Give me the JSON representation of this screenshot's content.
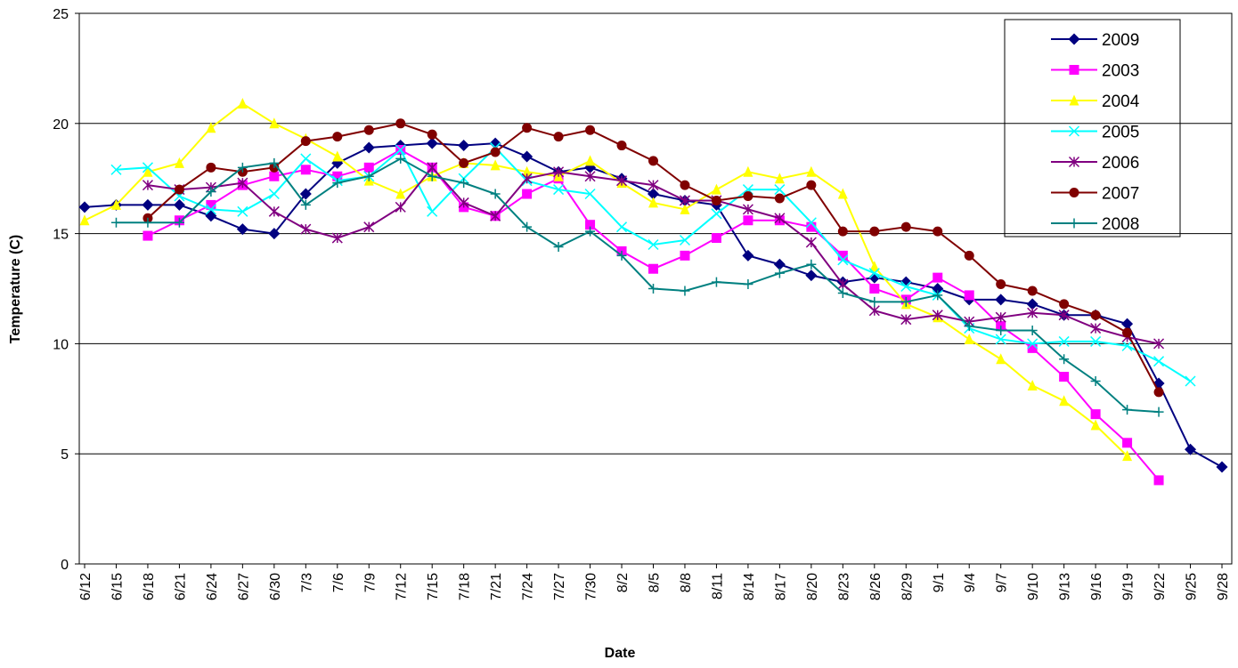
{
  "chart_data": {
    "type": "line",
    "x_label": "Date",
    "y_label": "Temperature (C)",
    "categories": [
      "6/12",
      "6/15",
      "6/18",
      "6/21",
      "6/24",
      "6/27",
      "6/30",
      "7/3",
      "7/6",
      "7/9",
      "7/12",
      "7/15",
      "7/18",
      "7/21",
      "7/24",
      "7/27",
      "7/30",
      "8/2",
      "8/5",
      "8/8",
      "8/11",
      "8/14",
      "8/17",
      "8/20",
      "8/23",
      "8/26",
      "8/29",
      "9/1",
      "9/4",
      "9/7",
      "9/10",
      "9/13",
      "9/16",
      "9/19",
      "9/22",
      "9/25",
      "9/28"
    ],
    "ylim": [
      0,
      25
    ],
    "yticks": [
      0,
      5,
      10,
      15,
      20,
      25
    ],
    "grid": true,
    "legend": "upper right",
    "series": [
      {
        "name": "2009",
        "color": "#000080",
        "marker": "diamond",
        "values": [
          16.2,
          16.3,
          16.3,
          16.3,
          15.8,
          15.2,
          15.0,
          16.8,
          18.2,
          18.9,
          19.0,
          19.1,
          19.0,
          19.1,
          18.5,
          17.8,
          18.0,
          17.5,
          16.8,
          16.5,
          16.3,
          14.0,
          13.6,
          13.1,
          12.8,
          13.0,
          12.8,
          12.5,
          12.0,
          12.0,
          11.8,
          11.3,
          11.3,
          10.9,
          8.2,
          5.2,
          4.4
        ]
      },
      {
        "name": "2003",
        "color": "#ff00ff",
        "marker": "square",
        "values": [
          null,
          null,
          14.9,
          15.6,
          16.3,
          17.2,
          17.6,
          17.9,
          17.6,
          18.0,
          18.8,
          18.0,
          16.2,
          15.8,
          16.8,
          17.5,
          15.4,
          14.2,
          13.4,
          14.0,
          14.8,
          15.6,
          15.6,
          15.3,
          14.0,
          12.5,
          12.0,
          13.0,
          12.2,
          10.8,
          9.8,
          8.5,
          6.8,
          5.5,
          3.8,
          null,
          null
        ]
      },
      {
        "name": "2004",
        "color": "#ffff00",
        "marker": "triangle",
        "values": [
          15.6,
          16.3,
          17.8,
          18.2,
          19.8,
          20.9,
          20.0,
          19.3,
          18.5,
          17.4,
          16.8,
          17.6,
          18.2,
          18.1,
          17.8,
          17.6,
          18.3,
          17.3,
          16.4,
          16.1,
          17.0,
          17.8,
          17.5,
          17.8,
          16.8,
          13.5,
          11.8,
          11.2,
          10.2,
          9.3,
          8.1,
          7.4,
          6.3,
          4.9,
          null,
          null,
          null
        ]
      },
      {
        "name": "2005",
        "color": "#00ffff",
        "marker": "x",
        "values": [
          null,
          17.9,
          18.0,
          16.7,
          16.1,
          16.0,
          16.8,
          18.4,
          17.4,
          17.6,
          18.8,
          16.0,
          17.5,
          18.9,
          17.4,
          17.0,
          16.8,
          15.3,
          14.5,
          14.7,
          15.9,
          17.0,
          17.0,
          15.5,
          13.8,
          13.2,
          12.6,
          12.2,
          10.7,
          10.2,
          10.0,
          10.1,
          10.1,
          9.9,
          9.2,
          8.3,
          null
        ]
      },
      {
        "name": "2006",
        "color": "#800080",
        "marker": "asterisk",
        "values": [
          null,
          null,
          17.2,
          17.0,
          17.1,
          17.3,
          16.0,
          15.2,
          14.8,
          15.3,
          16.2,
          18.0,
          16.4,
          15.8,
          17.5,
          17.8,
          17.6,
          17.4,
          17.2,
          16.5,
          16.5,
          16.1,
          15.7,
          14.6,
          12.7,
          11.5,
          11.1,
          11.3,
          11.0,
          11.2,
          11.4,
          11.3,
          10.7,
          10.3,
          10.0,
          null,
          null
        ]
      },
      {
        "name": "2007",
        "color": "#800000",
        "marker": "circle",
        "values": [
          null,
          null,
          15.7,
          17.0,
          18.0,
          17.8,
          18.0,
          19.2,
          19.4,
          19.7,
          20.0,
          19.5,
          18.2,
          18.7,
          19.8,
          19.4,
          19.7,
          19.0,
          18.3,
          17.2,
          16.5,
          16.7,
          16.6,
          17.2,
          15.1,
          15.1,
          15.3,
          15.1,
          14.0,
          12.7,
          12.4,
          11.8,
          11.3,
          10.5,
          7.8,
          null,
          null
        ]
      },
      {
        "name": "2008",
        "color": "#008080",
        "marker": "plus",
        "values": [
          null,
          15.5,
          15.5,
          15.5,
          16.9,
          18.0,
          18.2,
          16.3,
          17.3,
          17.6,
          18.4,
          17.6,
          17.3,
          16.8,
          15.3,
          14.4,
          15.1,
          14.0,
          12.5,
          12.4,
          12.8,
          12.7,
          13.2,
          13.6,
          12.3,
          11.9,
          11.9,
          12.2,
          10.8,
          10.6,
          10.6,
          9.3,
          8.3,
          7.0,
          6.9,
          null,
          null
        ]
      }
    ]
  }
}
